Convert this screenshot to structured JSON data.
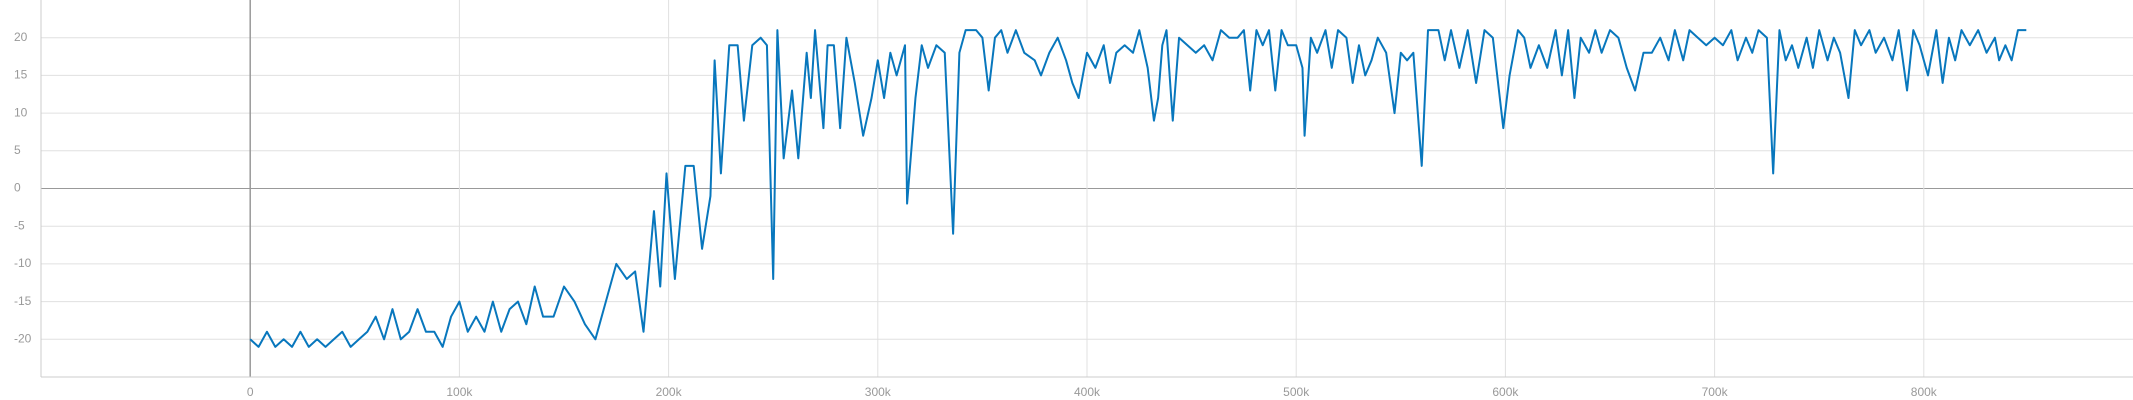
{
  "chart_data": {
    "type": "line",
    "color": "#0877bd",
    "grid": true,
    "xlim": [
      -100000,
      900000
    ],
    "ylim": [
      -25,
      25
    ],
    "xticks": [
      0,
      {
        "value": 100000,
        "label": "100k"
      },
      {
        "value": 200000,
        "label": "200k"
      },
      {
        "value": 300000,
        "label": "300k"
      },
      {
        "value": 400000,
        "label": "400k"
      },
      {
        "value": 500000,
        "label": "500k"
      },
      {
        "value": 600000,
        "label": "600k"
      },
      {
        "value": 700000,
        "label": "700k"
      },
      {
        "value": 800000,
        "label": "800k"
      }
    ],
    "yticks": [
      -20,
      -15,
      -10,
      -5,
      0,
      5,
      10,
      15,
      20
    ],
    "x": [
      0,
      4000,
      8000,
      12000,
      16000,
      20000,
      24000,
      28000,
      32000,
      36000,
      40000,
      44000,
      48000,
      52000,
      56000,
      60000,
      64000,
      68000,
      72000,
      76000,
      80000,
      84000,
      88000,
      92000,
      96000,
      100000,
      104000,
      108000,
      112000,
      116000,
      120000,
      124000,
      128000,
      132000,
      136000,
      140000,
      145000,
      150000,
      155000,
      160000,
      165000,
      170000,
      175000,
      180000,
      184000,
      188000,
      193000,
      196000,
      199000,
      203000,
      208000,
      212000,
      216000,
      220000,
      222000,
      225000,
      229000,
      233000,
      236000,
      240000,
      244000,
      247000,
      250000,
      252000,
      255000,
      259000,
      262000,
      266000,
      268000,
      270000,
      274000,
      276000,
      279000,
      282000,
      285000,
      289000,
      293000,
      297000,
      300000,
      303000,
      306000,
      309000,
      313000,
      314000,
      318000,
      321000,
      324000,
      328000,
      332000,
      336000,
      339000,
      342000,
      347000,
      350000,
      353000,
      356000,
      359000,
      362000,
      366000,
      370000,
      375000,
      378000,
      382000,
      386000,
      390000,
      393000,
      396000,
      400000,
      404000,
      408000,
      411000,
      414000,
      418000,
      422000,
      425000,
      429000,
      432000,
      434000,
      436000,
      438000,
      441000,
      444000,
      448000,
      452000,
      456000,
      460000,
      464000,
      468000,
      472000,
      475000,
      478000,
      481000,
      484000,
      487000,
      490000,
      493000,
      496000,
      500000,
      503000,
      504000,
      507000,
      510000,
      514000,
      517000,
      520000,
      524000,
      527000,
      530000,
      533000,
      536000,
      539000,
      543000,
      547000,
      550000,
      553000,
      556000,
      560000,
      563000,
      568000,
      571000,
      574000,
      578000,
      582000,
      586000,
      590000,
      594000,
      599000,
      602000,
      606000,
      609000,
      612000,
      616000,
      620000,
      624000,
      627000,
      630000,
      633000,
      636000,
      640000,
      643000,
      646000,
      650000,
      654000,
      658000,
      662000,
      666000,
      670000,
      674000,
      678000,
      681000,
      685000,
      688000,
      692000,
      696000,
      700000,
      704000,
      708000,
      711000,
      715000,
      718000,
      721000,
      725000,
      728000,
      731000,
      734000,
      737000,
      740000,
      744000,
      747000,
      750000,
      754000,
      757000,
      760000,
      764000,
      767000,
      770000,
      774000,
      777000,
      781000,
      785000,
      788000,
      792000,
      795000,
      798000,
      802000,
      806000,
      809000,
      812000,
      815000,
      818000,
      822000,
      826000,
      830000,
      834000,
      836000,
      839000,
      842000,
      845000,
      849000
    ],
    "values": [
      -20,
      -21,
      -19,
      -21,
      -20,
      -21,
      -19,
      -21,
      -20,
      -21,
      -20,
      -19,
      -21,
      -20,
      -19,
      -17,
      -20,
      -16,
      -20,
      -19,
      -16,
      -19,
      -19,
      -21,
      -17,
      -15,
      -19,
      -17,
      -19,
      -15,
      -19,
      -16,
      -15,
      -18,
      -13,
      -17,
      -17,
      -13,
      -15,
      -18,
      -20,
      -15,
      -10,
      -12,
      -11,
      -19,
      -3,
      -13,
      2,
      -12,
      3,
      3,
      -8,
      -1,
      17,
      2,
      19,
      19,
      9,
      19,
      20,
      19,
      -12,
      21,
      4,
      13,
      4,
      18,
      12,
      21,
      8,
      19,
      19,
      8,
      20,
      14,
      7,
      12,
      17,
      12,
      18,
      15,
      19,
      -2,
      12,
      19,
      16,
      19,
      18,
      -6,
      18,
      21,
      21,
      20,
      13,
      20,
      21,
      18,
      21,
      18,
      17,
      15,
      18,
      20,
      17,
      14,
      12,
      18,
      16,
      19,
      14,
      18,
      19,
      18,
      21,
      16,
      9,
      12,
      19,
      21,
      9,
      20,
      19,
      18,
      19,
      17,
      21,
      20,
      20,
      21,
      13,
      21,
      19,
      21,
      13,
      21,
      19,
      19,
      16,
      7,
      20,
      18,
      21,
      16,
      21,
      20,
      14,
      19,
      15,
      17,
      20,
      18,
      10,
      18,
      17,
      18,
      3,
      21,
      21,
      17,
      21,
      16,
      21,
      14,
      21,
      20,
      8,
      15,
      21,
      20,
      16,
      19,
      16,
      21,
      15,
      21,
      12,
      20,
      18,
      21,
      18,
      21,
      20,
      16,
      13,
      18,
      18,
      20,
      17,
      21,
      17,
      21,
      20,
      19,
      20,
      19,
      21,
      17,
      20,
      18,
      21,
      20,
      2,
      21,
      17,
      19,
      16,
      20,
      16,
      21,
      17,
      20,
      18,
      12,
      21,
      19,
      21,
      18,
      20,
      17,
      21,
      13,
      21,
      19,
      15,
      21,
      14,
      20,
      17,
      21,
      19,
      21,
      18,
      20,
      17,
      19,
      17,
      21,
      21
    ]
  }
}
